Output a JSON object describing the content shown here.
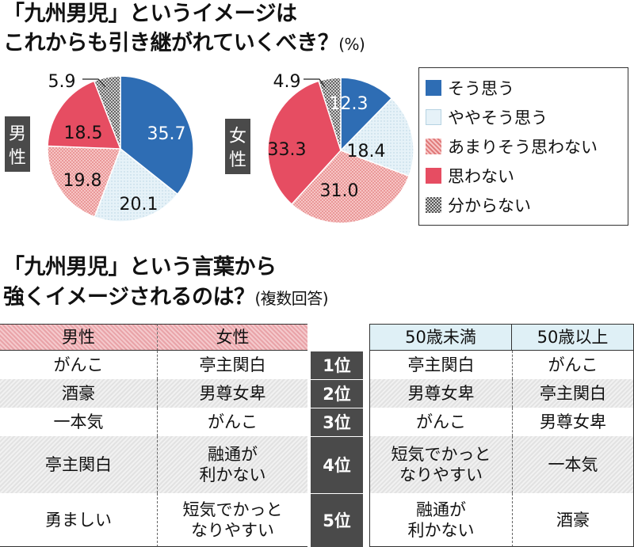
{
  "title1": {
    "line1": "「九州男児」というイメージは",
    "line2": "これからも引き継がれていくべき？",
    "unit": "(%)"
  },
  "title2": {
    "line1": "「九州男児」という言葉から",
    "line2": "強くイメージされるのは？",
    "note": "(複数回答)"
  },
  "chart_data": [
    {
      "type": "pie",
      "panel_label": "男性",
      "categories": [
        "そう思う",
        "ややそう思う",
        "あまりそう思わない",
        "思わない",
        "分からない"
      ],
      "values": [
        35.7,
        20.1,
        19.8,
        18.5,
        5.9
      ],
      "value_labels": [
        "35.7",
        "20.1",
        "19.8",
        "18.5",
        "5.9"
      ]
    },
    {
      "type": "pie",
      "panel_label": "女性",
      "categories": [
        "そう思う",
        "ややそう思う",
        "あまりそう思わない",
        "思わない",
        "分からない"
      ],
      "values": [
        12.3,
        18.4,
        31.0,
        33.3,
        4.9
      ],
      "value_labels": [
        "12.3",
        "18.4",
        "31.0",
        "33.3",
        "4.9"
      ]
    }
  ],
  "legend": [
    {
      "label": "そう思う",
      "color": "#2e6db4",
      "pattern": "solid"
    },
    {
      "label": "ややそう思う",
      "color": "#dcecf4",
      "pattern": "light"
    },
    {
      "label": "あまりそう思わない",
      "color": "#f2a8a8",
      "pattern": "hatch"
    },
    {
      "label": "思わない",
      "color": "#e64d62",
      "pattern": "solid"
    },
    {
      "label": "分からない",
      "color": "#9a9a9a",
      "pattern": "checker"
    }
  ],
  "table": {
    "headers_left": [
      "男性",
      "女性"
    ],
    "headers_right": [
      "50歳未満",
      "50歳以上"
    ],
    "rows": [
      {
        "rank": "1位",
        "male": "がんこ",
        "female": "亭主関白",
        "under50": "亭主関白",
        "over50": "がんこ"
      },
      {
        "rank": "2位",
        "male": "酒豪",
        "female": "男尊女卑",
        "under50": "男尊女卑",
        "over50": "亭主関白"
      },
      {
        "rank": "3位",
        "male": "一本気",
        "female": "がんこ",
        "under50": "がんこ",
        "over50": "男尊女卑"
      },
      {
        "rank": "4位",
        "male": "亭主関白",
        "female": "融通が\n利かない",
        "under50": "短気でかっと\nなりやすい",
        "over50": "一本気"
      },
      {
        "rank": "5位",
        "male": "勇ましい",
        "female": "短気でかっと\nなりやすい",
        "under50": "融通が\n利かない",
        "over50": "酒豪"
      }
    ]
  }
}
